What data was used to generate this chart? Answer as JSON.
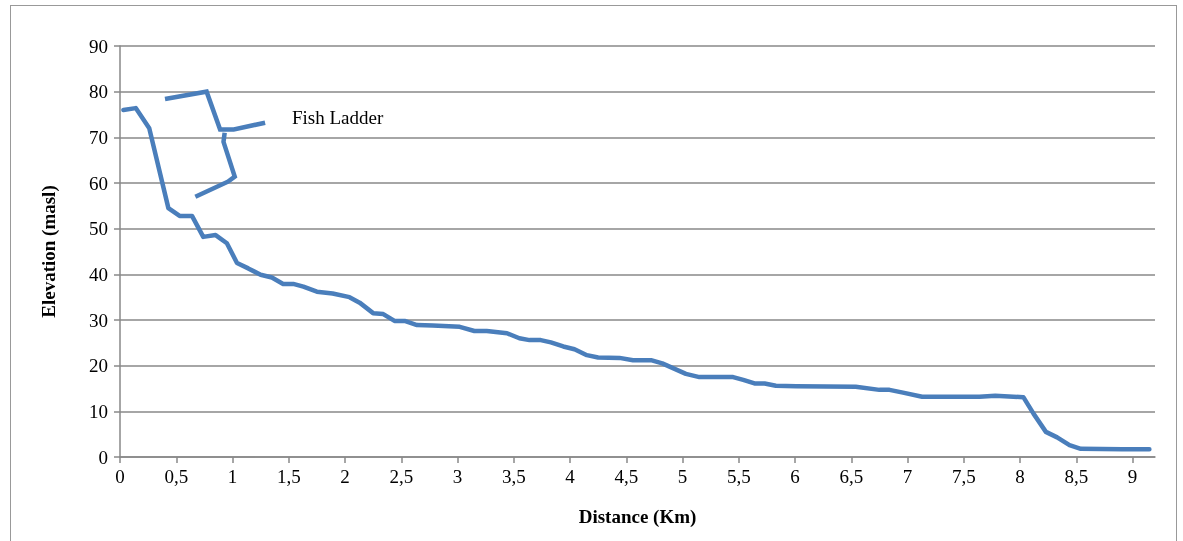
{
  "chart_data": {
    "type": "line",
    "xlabel": "Distance (Km)",
    "ylabel": "Elevation (masl)",
    "annotations": [
      "Fish Ladder"
    ],
    "x": [
      0.03,
      0.14,
      0.26,
      0.43,
      0.53,
      0.64,
      0.74,
      0.85,
      0.95,
      1.04,
      1.14,
      1.25,
      1.35,
      1.45,
      1.54,
      1.63,
      1.75,
      1.89,
      2.04,
      2.13,
      2.25,
      2.34,
      2.44,
      2.53,
      2.64,
      2.78,
      3.02,
      3.15,
      3.26,
      3.44,
      3.55,
      3.64,
      3.74,
      3.83,
      3.94,
      4.04,
      4.15,
      4.25,
      4.44,
      4.56,
      4.72,
      4.82,
      5.03,
      5.15,
      5.45,
      5.54,
      5.64,
      5.73,
      5.83,
      6.01,
      6.54,
      6.75,
      6.84,
      6.96,
      7.13,
      7.64,
      7.78,
      8.03,
      8.12,
      8.23,
      8.33,
      8.44,
      8.54,
      8.91,
      9.15
    ],
    "series": [
      {
        "color": "#4a7ebb",
        "values": [
          76.0,
          76.4,
          72.0,
          54.5,
          52.8,
          52.8,
          48.2,
          48.6,
          46.8,
          42.5,
          41.3,
          39.9,
          39.3,
          37.9,
          37.9,
          37.3,
          36.2,
          35.8,
          35.0,
          33.8,
          31.5,
          31.3,
          29.8,
          29.8,
          28.9,
          28.8,
          28.5,
          27.6,
          27.6,
          27.1,
          26.0,
          25.6,
          25.6,
          25.1,
          24.2,
          23.6,
          22.3,
          21.8,
          21.7,
          21.2,
          21.2,
          20.5,
          18.2,
          17.5,
          17.5,
          16.9,
          16.1,
          16.1,
          15.6,
          15.5,
          15.4,
          14.7,
          14.7,
          14.1,
          13.2,
          13.2,
          13.4,
          13.1,
          9.5,
          5.5,
          4.3,
          2.6,
          1.8,
          1.7,
          1.7
        ]
      }
    ],
    "xlim": [
      0,
      9.2
    ],
    "xticks": [
      0,
      {
        "value": 0.5,
        "label": "0,5"
      },
      1,
      {
        "value": 1.5,
        "label": "1,5"
      },
      2,
      {
        "value": 2.5,
        "label": "2,5"
      },
      3,
      {
        "value": 3.5,
        "label": "3,5"
      },
      4,
      {
        "value": 4.5,
        "label": "4,5"
      },
      5,
      {
        "value": 5.5,
        "label": "5,5"
      },
      6,
      {
        "value": 6.5,
        "label": "6,5"
      },
      7,
      {
        "value": 7.5,
        "label": "7,5"
      },
      8,
      {
        "value": 8.5,
        "label": "8,5"
      },
      9
    ],
    "ylim": [
      0,
      90
    ],
    "yticks": [
      0,
      10,
      20,
      30,
      40,
      50,
      60,
      70,
      80,
      90
    ],
    "grid": "y",
    "marker": "none",
    "line_style": "solid"
  }
}
